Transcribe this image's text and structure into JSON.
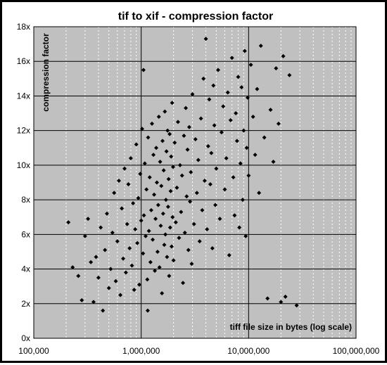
{
  "chart_data": {
    "type": "scatter",
    "title": "tif to xif - compression factor",
    "xlabel": "tiff file size in bytes (log scale)",
    "ylabel": "compression factor",
    "x_scale": "log",
    "xlim": [
      100000,
      100000000
    ],
    "ylim": [
      0,
      18
    ],
    "x_tick_labels": [
      "100,000",
      "1,000,000",
      "10,000,000",
      "100,000,000"
    ],
    "y_tick_labels": [
      "0x",
      "2x",
      "4x",
      "6x",
      "8x",
      "10x",
      "12x",
      "14x",
      "16x",
      "18x"
    ],
    "grid": true,
    "legend": "none",
    "colors": {
      "plot_background": "#c0c0c0",
      "marker": "#000000",
      "major_grid": "#000000",
      "minor_grid": "#ffffff"
    },
    "series": [
      {
        "marker": "diamond",
        "points": [
          [
            210000,
            6.7
          ],
          [
            230000,
            4.1
          ],
          [
            260000,
            3.6
          ],
          [
            280000,
            2.2
          ],
          [
            300000,
            5.9
          ],
          [
            320000,
            6.9
          ],
          [
            340000,
            4.4
          ],
          [
            360000,
            2.1
          ],
          [
            380000,
            4.7
          ],
          [
            400000,
            3.5
          ],
          [
            420000,
            6.4
          ],
          [
            440000,
            1.6
          ],
          [
            460000,
            5.1
          ],
          [
            480000,
            7.2
          ],
          [
            500000,
            2.9
          ],
          [
            520000,
            4.0
          ],
          [
            540000,
            6.1
          ],
          [
            560000,
            8.4
          ],
          [
            580000,
            3.3
          ],
          [
            600000,
            5.6
          ],
          [
            620000,
            9.1
          ],
          [
            640000,
            2.5
          ],
          [
            660000,
            7.5
          ],
          [
            680000,
            4.6
          ],
          [
            700000,
            9.8
          ],
          [
            720000,
            3.8
          ],
          [
            740000,
            6.6
          ],
          [
            760000,
            8.9
          ],
          [
            780000,
            5.2
          ],
          [
            800000,
            10.4
          ],
          [
            820000,
            4.2
          ],
          [
            840000,
            7.8
          ],
          [
            860000,
            2.8
          ],
          [
            880000,
            6.3
          ],
          [
            900000,
            11.2
          ],
          [
            920000,
            5.5
          ],
          [
            940000,
            8.1
          ],
          [
            960000,
            3.1
          ],
          [
            980000,
            9.5
          ],
          [
            1000000,
            6.8
          ],
          [
            1020000,
            12.1
          ],
          [
            1040000,
            4.9
          ],
          [
            1060000,
            7.1
          ],
          [
            1080000,
            10.1
          ],
          [
            1100000,
            5.9
          ],
          [
            1120000,
            8.6
          ],
          [
            1140000,
            3.4
          ],
          [
            1160000,
            11.6
          ],
          [
            1180000,
            6.2
          ],
          [
            1200000,
            9.3
          ],
          [
            1220000,
            4.4
          ],
          [
            1240000,
            7.4
          ],
          [
            1260000,
            12.4
          ],
          [
            1280000,
            5.7
          ],
          [
            1300000,
            10.6
          ],
          [
            1320000,
            8.3
          ],
          [
            1340000,
            3.9
          ],
          [
            1360000,
            6.9
          ],
          [
            1380000,
            11.0
          ],
          [
            1400000,
            9.0
          ],
          [
            1420000,
            5.0
          ],
          [
            1440000,
            7.7
          ],
          [
            1460000,
            12.8
          ],
          [
            1480000,
            4.1
          ],
          [
            1500000,
            10.2
          ],
          [
            1520000,
            6.5
          ],
          [
            1540000,
            8.8
          ],
          [
            1560000,
            2.6
          ],
          [
            1580000,
            11.4
          ],
          [
            1600000,
            7.2
          ],
          [
            1620000,
            9.7
          ],
          [
            1640000,
            5.4
          ],
          [
            1660000,
            13.1
          ],
          [
            1680000,
            6.0
          ],
          [
            1700000,
            8.0
          ],
          [
            1720000,
            10.8
          ],
          [
            1740000,
            4.7
          ],
          [
            1760000,
            12.0
          ],
          [
            1780000,
            7.6
          ],
          [
            1800000,
            9.2
          ],
          [
            1820000,
            3.6
          ],
          [
            1840000,
            11.8
          ],
          [
            1860000,
            6.4
          ],
          [
            1880000,
            8.5
          ],
          [
            1900000,
            10.5
          ],
          [
            1920000,
            5.3
          ],
          [
            1940000,
            13.6
          ],
          [
            1960000,
            7.0
          ],
          [
            1980000,
            9.9
          ],
          [
            2000000,
            4.5
          ],
          [
            2050000,
            11.3
          ],
          [
            2100000,
            6.7
          ],
          [
            2150000,
            8.7
          ],
          [
            2200000,
            12.5
          ],
          [
            2250000,
            5.8
          ],
          [
            2300000,
            10.0
          ],
          [
            2350000,
            7.3
          ],
          [
            2400000,
            9.4
          ],
          [
            2450000,
            3.2
          ],
          [
            2500000,
            11.7
          ],
          [
            2550000,
            6.1
          ],
          [
            2600000,
            13.3
          ],
          [
            2650000,
            8.2
          ],
          [
            2700000,
            10.9
          ],
          [
            2750000,
            5.1
          ],
          [
            2800000,
            12.2
          ],
          [
            2850000,
            7.9
          ],
          [
            2900000,
            9.6
          ],
          [
            2950000,
            4.3
          ],
          [
            3000000,
            14.1
          ],
          [
            3100000,
            6.6
          ],
          [
            3200000,
            11.5
          ],
          [
            3300000,
            8.4
          ],
          [
            3400000,
            10.3
          ],
          [
            3500000,
            5.6
          ],
          [
            3600000,
            12.7
          ],
          [
            3700000,
            7.4
          ],
          [
            3800000,
            15.0
          ],
          [
            3900000,
            9.1
          ],
          [
            4000000,
            17.3
          ],
          [
            4100000,
            6.3
          ],
          [
            4200000,
            11.1
          ],
          [
            4300000,
            13.8
          ],
          [
            4400000,
            8.9
          ],
          [
            4500000,
            10.7
          ],
          [
            4600000,
            5.2
          ],
          [
            4700000,
            14.6
          ],
          [
            4800000,
            12.3
          ],
          [
            4900000,
            7.7
          ],
          [
            5000000,
            9.8
          ],
          [
            5200000,
            15.5
          ],
          [
            5400000,
            6.9
          ],
          [
            5600000,
            11.9
          ],
          [
            5800000,
            13.4
          ],
          [
            6000000,
            8.6
          ],
          [
            6200000,
            10.4
          ],
          [
            6400000,
            14.2
          ],
          [
            6600000,
            4.8
          ],
          [
            6800000,
            12.6
          ],
          [
            7000000,
            16.2
          ],
          [
            7200000,
            9.3
          ],
          [
            7400000,
            7.1
          ],
          [
            7600000,
            13.0
          ],
          [
            7800000,
            11.4
          ],
          [
            8000000,
            15.1
          ],
          [
            8200000,
            6.4
          ],
          [
            8400000,
            10.1
          ],
          [
            8600000,
            14.5
          ],
          [
            8800000,
            8.0
          ],
          [
            9000000,
            12.0
          ],
          [
            9200000,
            16.6
          ],
          [
            9400000,
            5.9
          ],
          [
            9600000,
            11.0
          ],
          [
            9800000,
            13.9
          ],
          [
            10000000,
            9.4
          ],
          [
            10500000,
            15.8
          ],
          [
            11000000,
            12.8
          ],
          [
            11500000,
            10.6
          ],
          [
            12000000,
            14.4
          ],
          [
            12500000,
            8.4
          ],
          [
            13000000,
            16.9
          ],
          [
            14000000,
            11.6
          ],
          [
            15000000,
            2.3
          ],
          [
            16000000,
            13.2
          ],
          [
            17000000,
            10.2
          ],
          [
            18000000,
            15.6
          ],
          [
            19000000,
            12.4
          ],
          [
            20000000,
            2.1
          ],
          [
            21000000,
            16.3
          ],
          [
            22000000,
            2.4
          ],
          [
            24000000,
            15.2
          ],
          [
            28000000,
            1.9
          ],
          [
            1050000,
            15.5
          ],
          [
            1150000,
            1.6
          ]
        ]
      }
    ]
  }
}
